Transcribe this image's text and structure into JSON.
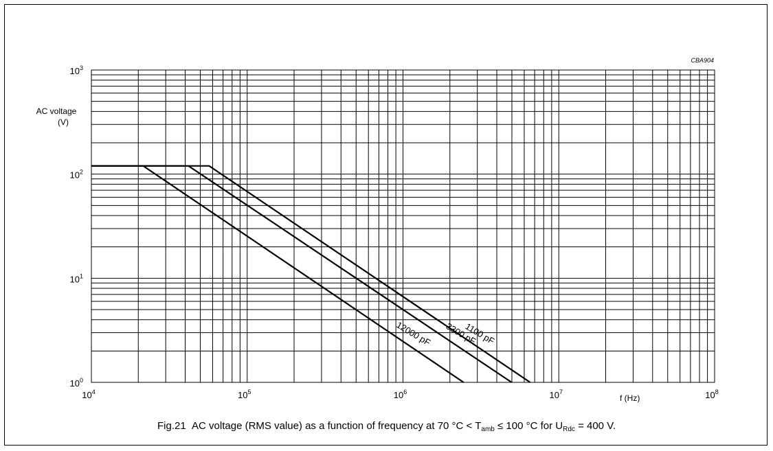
{
  "figure_code": "CBA904",
  "caption": {
    "fig_number": "Fig.21",
    "text_1": "AC voltage (RMS value) as a function of frequency at 70 °C < T",
    "t_sub": "amb",
    "text_2": " ≤ 100 °C for U",
    "u_sub": "Rdc",
    "text_3": " = 400 V."
  },
  "chart_data": {
    "type": "line",
    "xscale": "log",
    "yscale": "log",
    "xlim": [
      10000,
      100000000
    ],
    "ylim": [
      1,
      1000
    ],
    "grid": true,
    "ylabel_line1": "AC voltage",
    "ylabel_line2": "(V)",
    "xlabel": "f (Hz)",
    "x_ticks": [
      {
        "base": "10",
        "exp": "4",
        "value": 10000
      },
      {
        "base": "10",
        "exp": "5",
        "value": 100000
      },
      {
        "base": "10",
        "exp": "6",
        "value": 1000000
      },
      {
        "base": "10",
        "exp": "7",
        "value": 10000000
      },
      {
        "base": "10",
        "exp": "8",
        "value": 100000000
      }
    ],
    "y_ticks": [
      {
        "base": "10",
        "exp": "0",
        "value": 1
      },
      {
        "base": "10",
        "exp": "1",
        "value": 10
      },
      {
        "base": "10",
        "exp": "2",
        "value": 100
      },
      {
        "base": "10",
        "exp": "3",
        "value": 1000
      }
    ],
    "series": [
      {
        "name": "1100 pF",
        "x": [
          10000,
          57000,
          6550000
        ],
        "y": [
          120,
          120,
          1
        ]
      },
      {
        "name": "3300 pF",
        "x": [
          10000,
          42000,
          4980000
        ],
        "y": [
          120,
          120,
          1
        ]
      },
      {
        "name": "12000 pF",
        "x": [
          10000,
          21500,
          2450000
        ],
        "y": [
          120,
          120,
          1
        ]
      }
    ]
  }
}
